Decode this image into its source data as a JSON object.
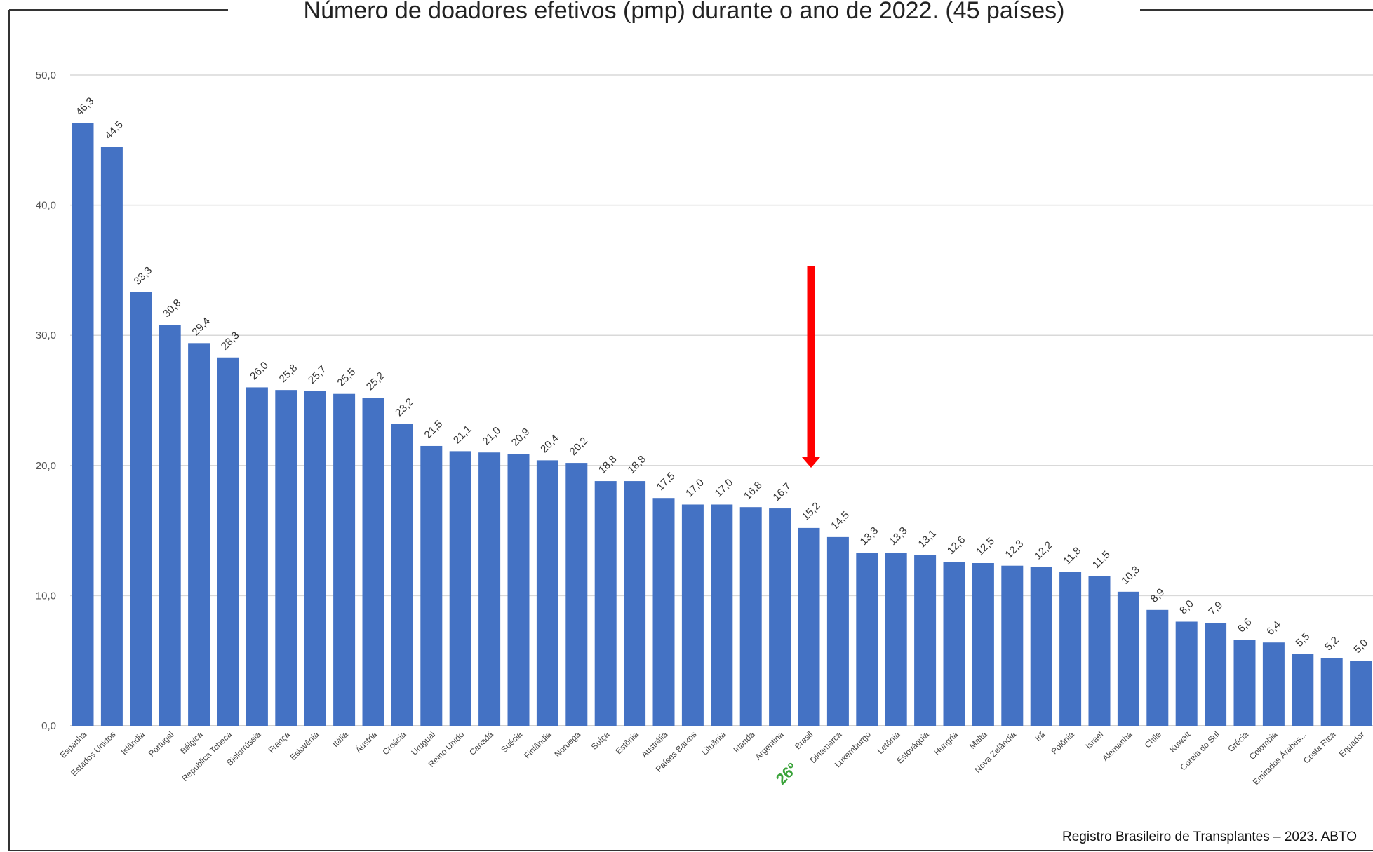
{
  "chart_data": {
    "type": "bar",
    "title": "Número de doadores efetivos (pmp) durante o ano de 2022. (45 países)",
    "xlabel": "",
    "ylabel": "",
    "ylim": [
      0,
      50
    ],
    "yticks": [
      "0,0",
      "10,0",
      "20,0",
      "30,0",
      "40,0",
      "50,0"
    ],
    "grid": true,
    "bar_color": "#4472C4",
    "categories": [
      "Espanha",
      "Estados Unidos",
      "Islândia",
      "Portugal",
      "Bélgica",
      "República Tcheca",
      "Bielorrússia",
      "França",
      "Eslovênia",
      "Itália",
      "Áustria",
      "Croácia",
      "Uruguai",
      "Reino Unido",
      "Canadá",
      "Suécia",
      "Finlândia",
      "Noruega",
      "Suíça",
      "Estônia",
      "Austrália",
      "Países Baixos",
      "Lituânia",
      "Irlanda",
      "Argentina",
      "Brasil",
      "Dinamarca",
      "Luxemburgo",
      "Letônia",
      "Eslováquia",
      "Hungria",
      "Malta",
      "Nova Zelândia",
      "Irã",
      "Polônia",
      "Israel",
      "Alemanha",
      "Chile",
      "Kuwait",
      "Coreia do Sul",
      "Grécia",
      "Colômbia",
      "Emirados Árabes...",
      "Costa Rica",
      "Equador"
    ],
    "values": [
      46.3,
      44.5,
      33.3,
      30.8,
      29.4,
      28.3,
      26.0,
      25.8,
      25.7,
      25.5,
      25.2,
      23.2,
      21.5,
      21.1,
      21.0,
      20.9,
      20.4,
      20.2,
      18.8,
      18.8,
      17.5,
      17.0,
      17.0,
      16.8,
      16.7,
      15.2,
      14.5,
      13.3,
      13.3,
      13.1,
      12.6,
      12.5,
      12.3,
      12.2,
      11.8,
      11.5,
      10.3,
      8.9,
      8.0,
      7.9,
      6.6,
      6.4,
      5.5,
      5.2,
      5.0
    ],
    "data_labels": [
      "46,3",
      "44,5",
      "33,3",
      "30,8",
      "29,4",
      "28,3",
      "26,0",
      "25,8",
      "25,7",
      "25,5",
      "25,2",
      "23,2",
      "21,5",
      "21,1",
      "21,0",
      "20,9",
      "20,4",
      "20,2",
      "18,8",
      "18,8",
      "17,5",
      "17,0",
      "17,0",
      "16,8",
      "16,7",
      "15,2",
      "14,5",
      "13,3",
      "13,3",
      "13,1",
      "12,6",
      "12,5",
      "12,3",
      "12,2",
      "11,8",
      "11,5",
      "10,3",
      "8,9",
      "8,0",
      "7,9",
      "6,6",
      "6,4",
      "5,5",
      "5,2",
      "5,0"
    ],
    "annotations": {
      "highlight_category": "Brasil",
      "rank_label": "26º",
      "rank_color": "#3aa33a",
      "arrow_color": "#ff0000"
    }
  },
  "footer": {
    "source": "Registro Brasileiro de Transplantes – 2023. ABTO"
  }
}
